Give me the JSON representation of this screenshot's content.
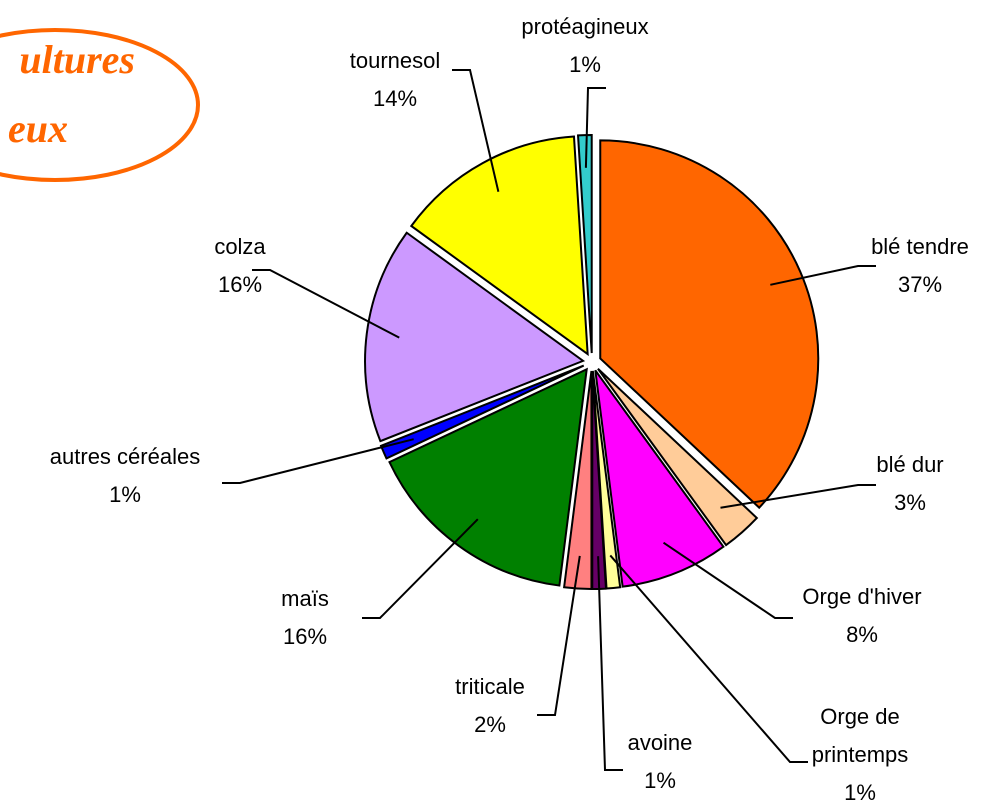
{
  "chart_data": {
    "type": "pie",
    "title": [
      "ultures",
      "eux"
    ],
    "categories": [
      "blé tendre",
      "blé dur",
      "Orge d'hiver",
      "Orge de printemps",
      "avoine",
      "triticale",
      "maïs",
      "autres céréales",
      "colza",
      "tournesol",
      "protéagineux"
    ],
    "values": [
      37,
      3,
      8,
      1,
      1,
      2,
      16,
      1,
      16,
      14,
      1
    ],
    "value_labels": [
      "37%",
      "3%",
      "8%",
      "1%",
      "1%",
      "2%",
      "16%",
      "1%",
      "16%",
      "14%",
      "1%"
    ],
    "colors": [
      "#ff6600",
      "#ffcc99",
      "#ff00ff",
      "#ffff99",
      "#660066",
      "#ff8080",
      "#008000",
      "#0000ff",
      "#cc99ff",
      "#ffff00",
      "#33cccc"
    ]
  }
}
